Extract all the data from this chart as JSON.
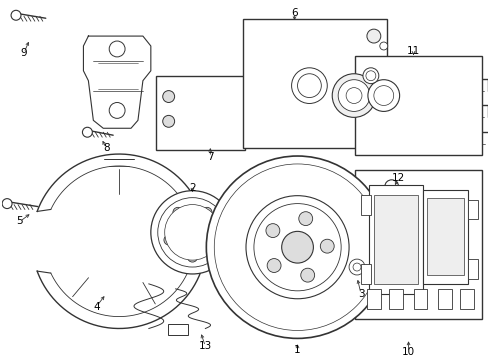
{
  "background_color": "#ffffff",
  "line_color": "#333333",
  "text_color": "#000000",
  "fig_w": 4.9,
  "fig_h": 3.6,
  "dpi": 100
}
